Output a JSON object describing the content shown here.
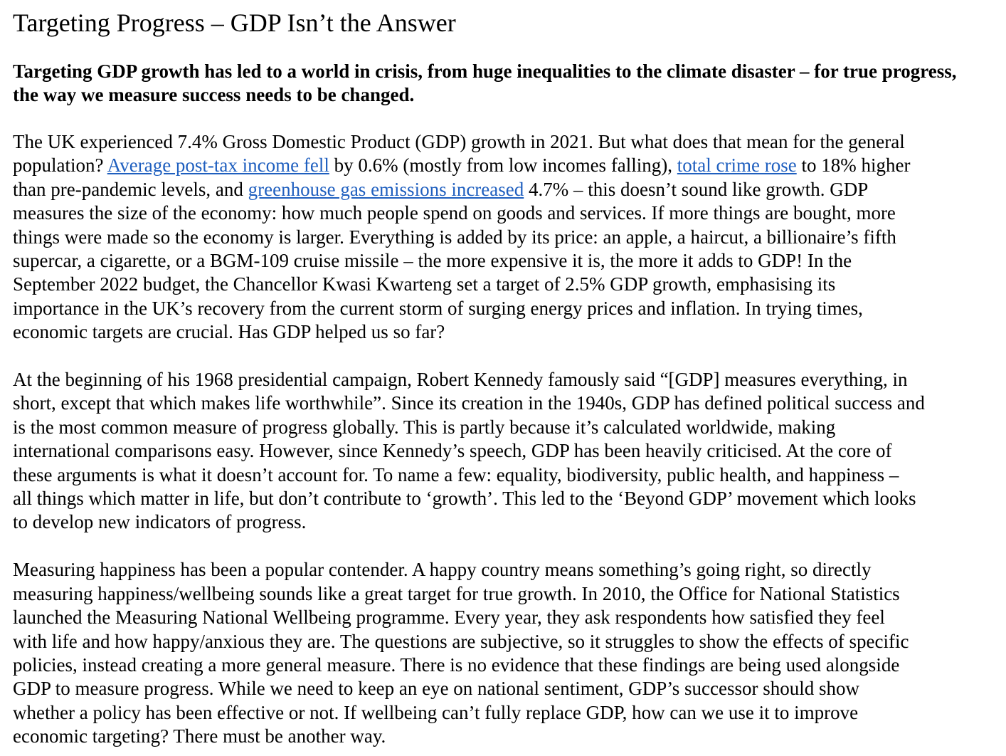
{
  "article": {
    "title": "Targeting Progress – GDP Isn’t the Answer",
    "subtitle": "Targeting GDP growth has led to a world in crisis, from huge inequalities to the climate disaster – for true progress, the way we measure success needs to be changed.",
    "p1": {
      "l1": "The UK experienced 7.4% Gross Domestic Product (GDP) growth in 2021. But what does that mean for the general",
      "l2_a": "population? ",
      "link_income": "Average post-tax income fell",
      "l2_b": " by 0.6% (mostly from low incomes falling), ",
      "link_crime": "total crime rose",
      "l2_c": " to 18% higher",
      "l3_a": "than pre-pandemic levels, and ",
      "link_emissions": "greenhouse gas emissions increased",
      "l3_b": " 4.7% – this doesn’t sound like growth. GDP",
      "l4": "measures the size of the economy: how much people spend on goods and services. If more things are bought, more",
      "l5": "things were made so the economy is larger. Everything is added by its price: an apple, a haircut, a billionaire’s fifth",
      "l6": "supercar, a cigarette, or a BGM-109 cruise missile – the more expensive it is, the more it adds to GDP! In the",
      "l7": "September 2022 budget, the Chancellor Kwasi Kwarteng set a target of 2.5% GDP growth, emphasising its",
      "l8": "importance in the UK’s recovery from the current storm of surging energy prices and inflation. In trying times,",
      "l9": "economic targets are crucial. Has GDP helped us so far?"
    },
    "p2": {
      "l1": "At the beginning of his 1968 presidential campaign, Robert Kennedy famously said “[GDP] measures everything, in",
      "l2": "short, except that which makes life worthwhile”. Since its creation in the 1940s, GDP has defined political success and",
      "l3": "is the most common measure of progress globally. This is partly because it’s calculated worldwide, making",
      "l4": "international comparisons easy. However, since Kennedy’s speech, GDP has been heavily criticised. At the core of",
      "l5": "these arguments is what it doesn’t account for. To name a few: equality, biodiversity, public health, and happiness –",
      "l6": "all things which matter in life, but don’t contribute to ‘growth’. This led to the ‘Beyond GDP’ movement which looks",
      "l7": "to develop new indicators of progress."
    },
    "p3": {
      "l1": "Measuring happiness has been a popular contender. A happy country means something’s going right, so directly",
      "l2": "measuring happiness/wellbeing sounds like a great target for true growth. In 2010, the Office for National Statistics",
      "l3": "launched the Measuring National Wellbeing programme. Every year, they ask respondents how satisfied they feel",
      "l4": "with life and how happy/anxious they are. The questions are subjective, so it struggles to show the effects of specific",
      "l5": "policies, instead creating a more general measure. There is no evidence that these findings are being used alongside",
      "l6": "GDP to measure progress. While we need to keep an eye on national sentiment, GDP’s successor should show",
      "l7": "whether a policy has been effective or not. If wellbeing can’t fully replace GDP, how can we use it to improve",
      "l8": "economic targeting? There must be another way."
    }
  },
  "colors": {
    "text": "#000000",
    "link": "#1f5fbf",
    "background": "#ffffff"
  }
}
